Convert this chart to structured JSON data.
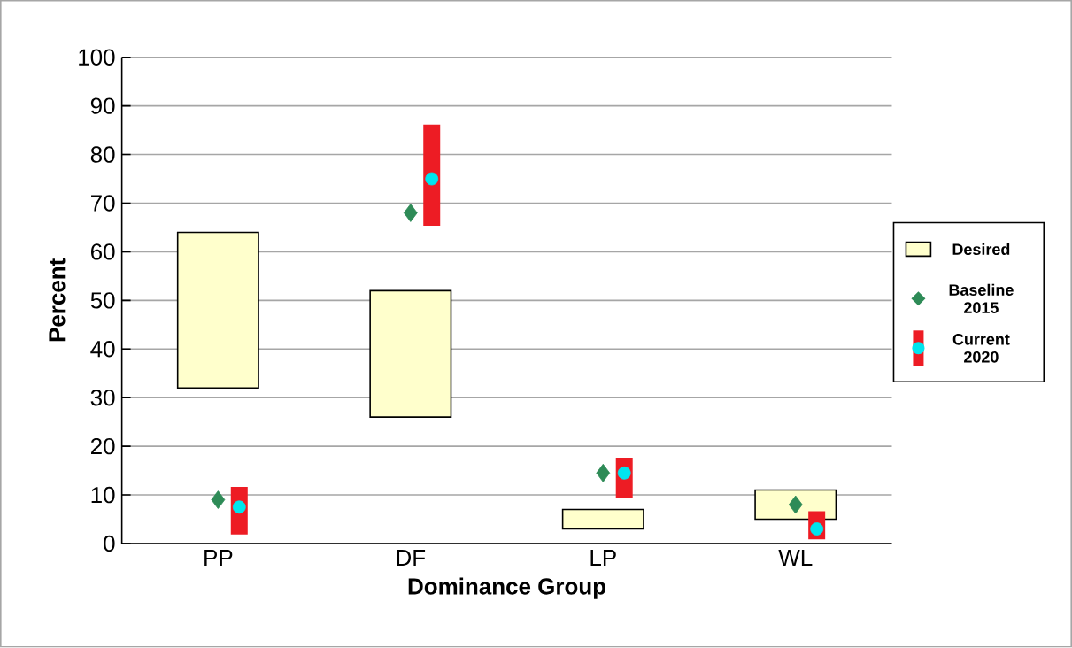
{
  "chart_data": {
    "type": "bar",
    "xlabel": "Dominance Group",
    "ylabel": "Percent",
    "categories": [
      "PP",
      "DF",
      "LP",
      "WL"
    ],
    "ylim": [
      0,
      100
    ],
    "yticks": [
      0,
      10,
      20,
      30,
      40,
      50,
      60,
      70,
      80,
      90,
      100
    ],
    "grid": "y",
    "legend": "right",
    "series": [
      {
        "name": "Desired",
        "color": "#ffffcc",
        "base": [
          32,
          26,
          3,
          5
        ],
        "values": [
          32,
          26,
          4,
          6
        ]
      },
      {
        "name": "Baseline 2015",
        "type": "scatter",
        "marker": "diamond",
        "color": "#2e8b57",
        "x": [
          "PP",
          "DF",
          "LP",
          "WL"
        ],
        "values": [
          9,
          68,
          14.5,
          8
        ]
      },
      {
        "name": "Current 2020",
        "color": "#ed1c24",
        "base": [
          2,
          65.5,
          9.5,
          1
        ],
        "values": [
          9.5,
          20.5,
          8,
          5.5
        ]
      },
      {
        "type": "scatter",
        "marker": "circle",
        "color": "#00e5ee",
        "x": [
          "PP",
          "DF",
          "LP",
          "WL"
        ],
        "values": [
          7.5,
          75,
          14.5,
          3
        ]
      }
    ]
  }
}
